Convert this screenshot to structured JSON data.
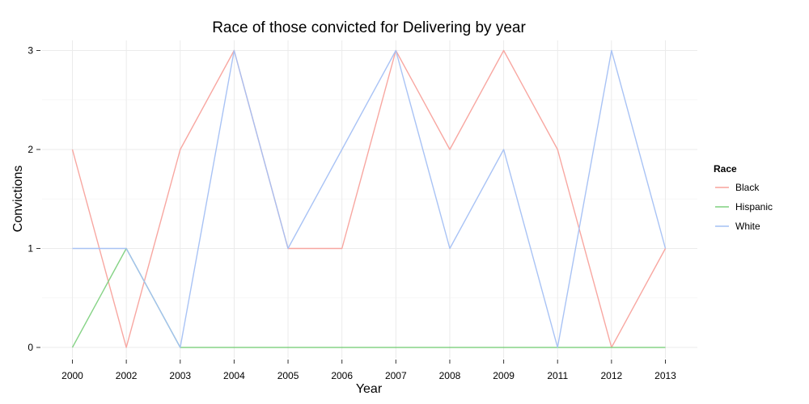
{
  "chart_data": {
    "type": "line",
    "title": "Race of those convicted for Delivering by year",
    "xlabel": "Year",
    "ylabel": "Convictions",
    "categories": [
      "2000",
      "2002",
      "2003",
      "2004",
      "2005",
      "2006",
      "2007",
      "2008",
      "2009",
      "2011",
      "2012",
      "2013"
    ],
    "yticks": [
      0,
      1,
      2,
      3
    ],
    "ylim": [
      -0.1,
      3.1
    ],
    "grid": true,
    "legend": {
      "title": "Race",
      "placement": "right"
    },
    "series": [
      {
        "name": "Black",
        "color": "#f8a29c",
        "values": [
          2,
          0,
          2,
          3,
          1,
          1,
          3,
          2,
          3,
          2,
          0,
          1
        ]
      },
      {
        "name": "Hispanic",
        "color": "#7fd17f",
        "values": [
          0,
          1,
          0,
          0,
          0,
          0,
          0,
          0,
          0,
          0,
          0,
          0
        ]
      },
      {
        "name": "White",
        "color": "#a4c0f4",
        "values": [
          1,
          1,
          0,
          3,
          1,
          2,
          3,
          1,
          2,
          0,
          3,
          1
        ]
      }
    ]
  }
}
